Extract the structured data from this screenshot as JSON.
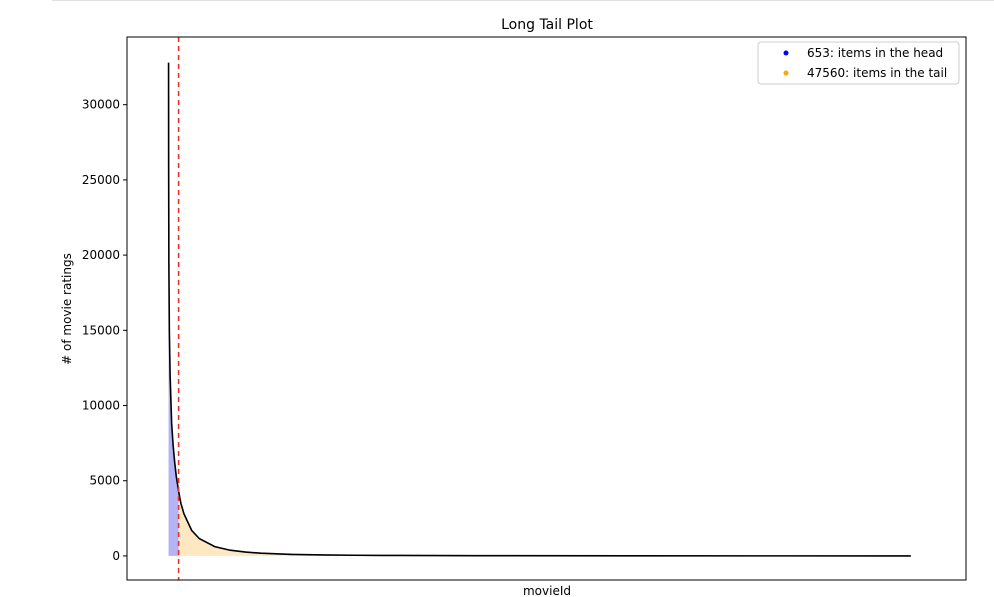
{
  "chart_data": {
    "type": "area",
    "title": "Long Tail Plot",
    "xlabel": "movieId",
    "ylabel": "# of movie ratings",
    "x_ticks_shown": false,
    "xlim": [
      -2700,
      51800
    ],
    "ylim": [
      -1600,
      34500
    ],
    "yticks": [
      0,
      5000,
      10000,
      15000,
      20000,
      25000,
      30000
    ],
    "ytick_labels": [
      "0",
      "5000",
      "10000",
      "15000",
      "20000",
      "25000",
      "30000"
    ],
    "head_cutoff_index": 653,
    "series": [
      {
        "kind": "line",
        "color": "#000000",
        "x": [
          0,
          5,
          20,
          50,
          100,
          200,
          300,
          400,
          500,
          653,
          800,
          1000,
          1500,
          2000,
          3000,
          4000,
          5000,
          6000,
          8000,
          10000,
          12000,
          15000,
          20000,
          30000,
          40000,
          48213
        ],
        "y": [
          32800,
          26000,
          19500,
          15000,
          12000,
          8800,
          7300,
          6200,
          5300,
          4300,
          3500,
          2800,
          1700,
          1150,
          620,
          380,
          260,
          180,
          100,
          65,
          45,
          30,
          18,
          8,
          4,
          1
        ]
      }
    ],
    "fills": [
      {
        "region": "head",
        "x_range": [
          0,
          653
        ],
        "color": "#b3b3f5"
      },
      {
        "region": "tail",
        "x_range": [
          653,
          48213
        ],
        "color": "#fde8c2"
      }
    ],
    "vline": {
      "x": 653,
      "color": "#e8332a",
      "style": "dashed"
    },
    "legend": {
      "placement": "top-right",
      "entries": [
        {
          "label": "653: items in the head",
          "color": "#0000ff"
        },
        {
          "label": "47560: items in the tail",
          "color": "#ffa500"
        }
      ]
    }
  }
}
